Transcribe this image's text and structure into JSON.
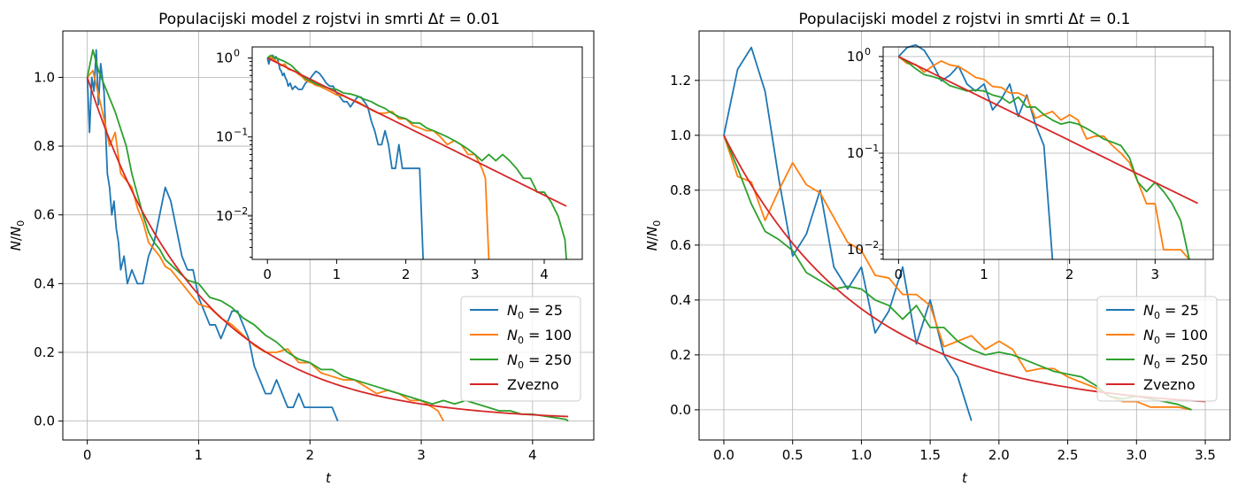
{
  "colors": {
    "N0_25": "#1f77b4",
    "N0_100": "#ff7f0e",
    "N0_250": "#2ca02c",
    "zvezno": "#d62728",
    "grid": "#b0b0b0"
  },
  "chart_data": [
    {
      "type": "line",
      "title_parts": [
        "Populacijski model z rojstvi in smrti ",
        "Δ",
        "t",
        " = 0.01"
      ],
      "xlabel": "t",
      "ylabel_parts": [
        "N",
        "/",
        "N",
        "0"
      ],
      "xlim": [
        -0.22,
        4.55
      ],
      "ylim": [
        -0.055,
        1.135
      ],
      "xticks": [
        0,
        1,
        2,
        3,
        4
      ],
      "xtick_labels": [
        "0",
        "1",
        "2",
        "3",
        "4"
      ],
      "yticks": [
        0.0,
        0.2,
        0.4,
        0.6,
        0.8,
        1.0
      ],
      "ytick_labels": [
        "0.0",
        "0.2",
        "0.4",
        "0.6",
        "0.8",
        "1.0"
      ],
      "grid": true,
      "legend_position": "lower-right",
      "legend": [
        {
          "label_parts": [
            "N",
            "0",
            " = 25"
          ],
          "series": "N0_25"
        },
        {
          "label_parts": [
            "N",
            "0",
            " = 100"
          ],
          "series": "N0_100"
        },
        {
          "label_parts": [
            "N",
            "0",
            " = 250"
          ],
          "series": "N0_250"
        },
        {
          "label_parts": [
            "Zvezno"
          ],
          "series": "zvezno"
        }
      ],
      "series": [
        {
          "name": "N0 = 25",
          "key": "N0_25",
          "x": [
            0,
            0.02,
            0.04,
            0.06,
            0.08,
            0.1,
            0.12,
            0.15,
            0.18,
            0.2,
            0.22,
            0.24,
            0.26,
            0.28,
            0.3,
            0.33,
            0.36,
            0.4,
            0.45,
            0.5,
            0.55,
            0.6,
            0.65,
            0.7,
            0.75,
            0.8,
            0.85,
            0.9,
            0.95,
            1.0,
            1.05,
            1.1,
            1.15,
            1.2,
            1.25,
            1.3,
            1.35,
            1.4,
            1.45,
            1.5,
            1.55,
            1.6,
            1.65,
            1.7,
            1.75,
            1.8,
            1.85,
            1.9,
            1.95,
            2.0,
            2.05,
            2.1,
            2.15,
            2.2,
            2.25
          ],
          "y": [
            1.0,
            0.84,
            1.0,
            0.96,
            1.08,
            0.92,
            1.04,
            0.96,
            0.72,
            0.68,
            0.6,
            0.64,
            0.56,
            0.52,
            0.44,
            0.48,
            0.4,
            0.44,
            0.4,
            0.4,
            0.48,
            0.52,
            0.6,
            0.68,
            0.64,
            0.56,
            0.48,
            0.44,
            0.44,
            0.36,
            0.32,
            0.28,
            0.28,
            0.24,
            0.28,
            0.32,
            0.32,
            0.28,
            0.24,
            0.16,
            0.12,
            0.08,
            0.08,
            0.12,
            0.08,
            0.04,
            0.04,
            0.08,
            0.04,
            0.04,
            0.04,
            0.04,
            0.04,
            0.04,
            0.0
          ]
        },
        {
          "name": "N0 = 100",
          "key": "N0_100",
          "x": [
            0,
            0.05,
            0.1,
            0.15,
            0.2,
            0.25,
            0.3,
            0.35,
            0.4,
            0.45,
            0.5,
            0.55,
            0.6,
            0.65,
            0.7,
            0.75,
            0.8,
            0.85,
            0.9,
            0.95,
            1.0,
            1.1,
            1.2,
            1.3,
            1.4,
            1.5,
            1.6,
            1.7,
            1.8,
            1.9,
            2.0,
            2.1,
            2.2,
            2.3,
            2.4,
            2.5,
            2.6,
            2.7,
            2.8,
            2.9,
            3.0,
            3.1,
            3.15,
            3.2
          ],
          "y": [
            1.0,
            1.02,
            0.95,
            0.88,
            0.8,
            0.84,
            0.72,
            0.7,
            0.68,
            0.62,
            0.58,
            0.52,
            0.5,
            0.48,
            0.45,
            0.44,
            0.42,
            0.4,
            0.38,
            0.36,
            0.34,
            0.33,
            0.3,
            0.28,
            0.25,
            0.22,
            0.2,
            0.2,
            0.21,
            0.17,
            0.17,
            0.14,
            0.13,
            0.12,
            0.12,
            0.1,
            0.08,
            0.09,
            0.08,
            0.06,
            0.06,
            0.04,
            0.03,
            0.0
          ]
        },
        {
          "name": "N0 = 250",
          "key": "N0_250",
          "x": [
            0,
            0.05,
            0.1,
            0.15,
            0.2,
            0.25,
            0.3,
            0.35,
            0.4,
            0.45,
            0.5,
            0.55,
            0.6,
            0.65,
            0.7,
            0.8,
            0.9,
            1.0,
            1.1,
            1.2,
            1.3,
            1.4,
            1.5,
            1.6,
            1.7,
            1.8,
            1.9,
            2.0,
            2.1,
            2.2,
            2.3,
            2.4,
            2.5,
            2.6,
            2.7,
            2.8,
            2.9,
            3.0,
            3.1,
            3.2,
            3.3,
            3.4,
            3.5,
            3.6,
            3.7,
            3.8,
            3.9,
            4.0,
            4.1,
            4.2,
            4.3,
            4.32
          ],
          "y": [
            1.0,
            1.08,
            1.02,
            0.98,
            0.94,
            0.9,
            0.85,
            0.8,
            0.72,
            0.66,
            0.6,
            0.55,
            0.52,
            0.5,
            0.47,
            0.44,
            0.41,
            0.4,
            0.36,
            0.35,
            0.33,
            0.3,
            0.28,
            0.25,
            0.23,
            0.2,
            0.18,
            0.17,
            0.15,
            0.15,
            0.13,
            0.12,
            0.11,
            0.1,
            0.09,
            0.08,
            0.07,
            0.06,
            0.05,
            0.06,
            0.05,
            0.06,
            0.05,
            0.04,
            0.03,
            0.03,
            0.02,
            0.02,
            0.015,
            0.01,
            0.005,
            0.0
          ]
        },
        {
          "name": "Zvezno",
          "key": "zvezno",
          "fn_rate": 1.0,
          "x_range": [
            0,
            4.32
          ]
        }
      ],
      "inset": {
        "xlim": [
          -0.22,
          4.55
        ],
        "ylim_log": [
          -2.55,
          0.14
        ],
        "xticks": [
          0,
          1,
          2,
          3,
          4
        ],
        "xtick_labels": [
          "0",
          "1",
          "2",
          "3",
          "4"
        ],
        "ytick_exponents": [
          0,
          -1,
          -2
        ],
        "ytick_labels": [
          [
            "10",
            "0"
          ],
          [
            "10",
            "−1"
          ],
          [
            "10",
            "−2"
          ]
        ],
        "log_y": true,
        "grid": false
      }
    },
    {
      "type": "line",
      "title_parts": [
        "Populacijski model z rojstvi in smrti ",
        "Δ",
        "t",
        " = 0.1"
      ],
      "xlabel": "t",
      "ylabel_parts": [
        "N",
        "/",
        "N",
        "0"
      ],
      "xlim": [
        -0.18,
        3.68
      ],
      "ylim": [
        -0.11,
        1.38
      ],
      "xticks": [
        0.0,
        0.5,
        1.0,
        1.5,
        2.0,
        2.5,
        3.0,
        3.5
      ],
      "xtick_labels": [
        "0.0",
        "0.5",
        "1.0",
        "1.5",
        "2.0",
        "2.5",
        "3.0",
        "3.5"
      ],
      "yticks": [
        0.0,
        0.2,
        0.4,
        0.6,
        0.8,
        1.0,
        1.2
      ],
      "ytick_labels": [
        "0.0",
        "0.2",
        "0.4",
        "0.6",
        "0.8",
        "1.0",
        "1.2"
      ],
      "grid": true,
      "legend_position": "lower-right",
      "legend": [
        {
          "label_parts": [
            "N",
            "0",
            " = 25"
          ],
          "series": "N0_25"
        },
        {
          "label_parts": [
            "N",
            "0",
            " = 100"
          ],
          "series": "N0_100"
        },
        {
          "label_parts": [
            "N",
            "0",
            " = 250"
          ],
          "series": "N0_250"
        },
        {
          "label_parts": [
            "Zvezno"
          ],
          "series": "zvezno"
        }
      ],
      "series": [
        {
          "name": "N0 = 25",
          "key": "N0_25",
          "x": [
            0.0,
            0.1,
            0.2,
            0.3,
            0.4,
            0.5,
            0.6,
            0.7,
            0.8,
            0.9,
            1.0,
            1.1,
            1.2,
            1.3,
            1.4,
            1.5,
            1.6,
            1.7,
            1.8
          ],
          "y": [
            1.0,
            1.24,
            1.32,
            1.16,
            0.84,
            0.56,
            0.64,
            0.8,
            0.52,
            0.44,
            0.52,
            0.28,
            0.36,
            0.52,
            0.24,
            0.4,
            0.2,
            0.12,
            -0.04
          ]
        },
        {
          "name": "N0 = 100",
          "key": "N0_100",
          "x": [
            0.0,
            0.1,
            0.2,
            0.3,
            0.4,
            0.5,
            0.6,
            0.7,
            0.8,
            0.9,
            1.0,
            1.1,
            1.2,
            1.3,
            1.4,
            1.5,
            1.6,
            1.7,
            1.8,
            1.9,
            2.0,
            2.1,
            2.2,
            2.3,
            2.4,
            2.5,
            2.6,
            2.7,
            2.8,
            2.9,
            3.0,
            3.1,
            3.2,
            3.3,
            3.4
          ],
          "y": [
            1.0,
            0.85,
            0.83,
            0.69,
            0.8,
            0.9,
            0.82,
            0.79,
            0.7,
            0.61,
            0.58,
            0.49,
            0.48,
            0.42,
            0.42,
            0.38,
            0.23,
            0.25,
            0.27,
            0.22,
            0.25,
            0.22,
            0.14,
            0.15,
            0.15,
            0.12,
            0.1,
            0.08,
            0.05,
            0.03,
            0.03,
            0.01,
            0.01,
            0.01,
            0.0
          ]
        },
        {
          "name": "N0 = 250",
          "key": "N0_250",
          "x": [
            0.0,
            0.1,
            0.2,
            0.3,
            0.4,
            0.5,
            0.6,
            0.7,
            0.8,
            0.9,
            1.0,
            1.1,
            1.2,
            1.3,
            1.4,
            1.5,
            1.6,
            1.7,
            1.8,
            1.9,
            2.0,
            2.1,
            2.2,
            2.3,
            2.4,
            2.5,
            2.6,
            2.7,
            2.8,
            2.9,
            3.0,
            3.1,
            3.2,
            3.3,
            3.4
          ],
          "y": [
            1.0,
            0.88,
            0.75,
            0.65,
            0.62,
            0.58,
            0.5,
            0.47,
            0.44,
            0.45,
            0.44,
            0.4,
            0.38,
            0.33,
            0.38,
            0.3,
            0.3,
            0.25,
            0.22,
            0.2,
            0.21,
            0.2,
            0.18,
            0.16,
            0.14,
            0.13,
            0.12,
            0.09,
            0.05,
            0.04,
            0.05,
            0.04,
            0.03,
            0.02,
            0.0
          ]
        },
        {
          "name": "Zvezno",
          "key": "zvezno",
          "fn_rate": 1.0,
          "x_range": [
            0,
            3.5
          ]
        }
      ],
      "inset": {
        "xlim": [
          -0.18,
          3.68
        ],
        "ylim_log": [
          -2.1,
          0.1
        ],
        "xticks": [
          0,
          1,
          2,
          3
        ],
        "xtick_labels": [
          "0",
          "1",
          "2",
          "3"
        ],
        "ytick_exponents": [
          0,
          -1,
          -2
        ],
        "ytick_labels": [
          [
            "10",
            "0"
          ],
          [
            "10",
            "−1"
          ],
          [
            "10",
            "−2"
          ]
        ],
        "log_y": true,
        "grid": true
      }
    }
  ]
}
